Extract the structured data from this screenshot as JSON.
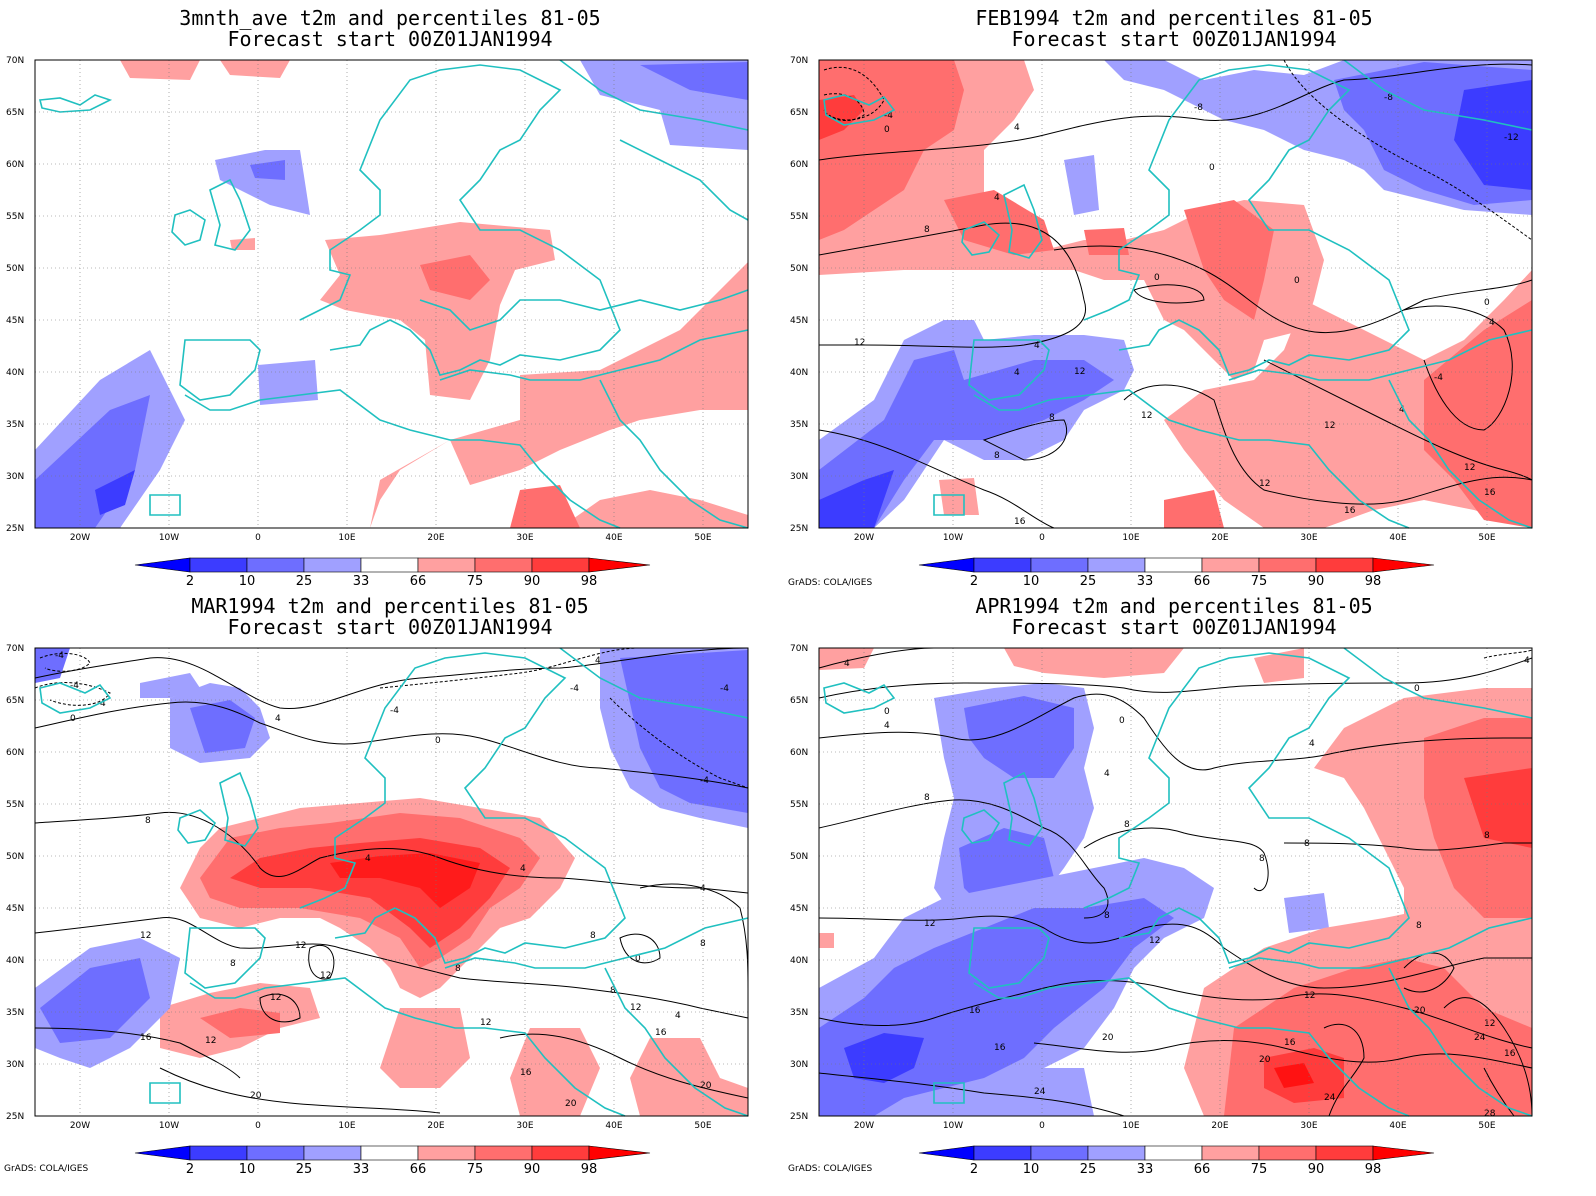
{
  "panels": [
    {
      "id": "p1",
      "title_line1": "3mnth_ave t2m and percentiles 81-05",
      "title_line2": "Forecast start 00Z01JAN1994",
      "credit": ""
    },
    {
      "id": "p2",
      "title_line1": "FEB1994 t2m and percentiles 81-05",
      "title_line2": "Forecast start 00Z01JAN1994",
      "credit": "GrADS: COLA/IGES"
    },
    {
      "id": "p3",
      "title_line1": "MAR1994 t2m and percentiles 81-05",
      "title_line2": "Forecast start 00Z01JAN1994",
      "credit": "GrADS: COLA/IGES"
    },
    {
      "id": "p4",
      "title_line1": "APR1994 t2m and percentiles 81-05",
      "title_line2": "Forecast start 00Z01JAN1994",
      "credit": "GrADS: COLA/IGES"
    }
  ],
  "axes": {
    "lat_labels": [
      "70N",
      "65N",
      "60N",
      "55N",
      "50N",
      "45N",
      "40N",
      "35N",
      "30N",
      "25N"
    ],
    "lon_labels": [
      "20W",
      "10W",
      "0",
      "10E",
      "20E",
      "30E",
      "40E",
      "50E"
    ]
  },
  "colorbar": {
    "labels": [
      "2",
      "10",
      "25",
      "33",
      "66",
      "75",
      "90",
      "98"
    ],
    "colors": [
      "#0000ff",
      "#3c3cff",
      "#6e6eff",
      "#a0a0ff",
      "#ffffff",
      "#ffa0a0",
      "#ff6e6e",
      "#ff3c3c",
      "#ff0000"
    ]
  },
  "contour_labels": {
    "p2": [
      "-4",
      "-8",
      "0",
      "4",
      "8",
      "12",
      "16",
      "-12"
    ],
    "p3": [
      "-4",
      "0",
      "4",
      "8",
      "12",
      "16",
      "20"
    ],
    "p4": [
      "0",
      "4",
      "8",
      "12",
      "16",
      "20",
      "24",
      "28"
    ]
  }
}
